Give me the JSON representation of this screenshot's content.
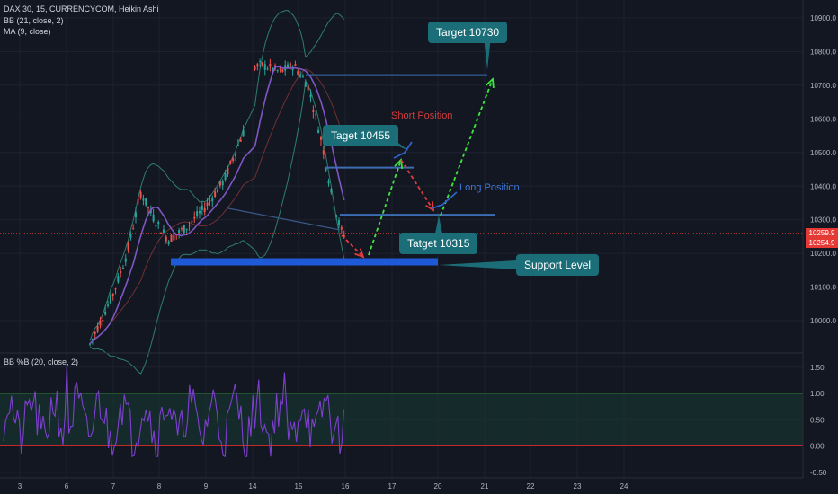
{
  "header": {
    "title": "DAX 30, 15, CURRENCYCOM, Heikin Ashi",
    "bb_label": "BB (21, close, 2)",
    "ma_label": "MA (9, close)"
  },
  "indicator": {
    "label": "BB %B (20, close, 2)"
  },
  "price_badges": {
    "upper": "10259.9",
    "lower": "10254.9"
  },
  "annotations": {
    "target_top": "Target 10730",
    "target_mid": "Taget 10455",
    "target_low": "Tatget 10315",
    "short": "Short Position",
    "long": "Long Position",
    "support": "Support Level"
  },
  "colors": {
    "background": "#131722",
    "up_candle": "#26a69a",
    "down_candle": "#ef5350",
    "bb_band": "#2f7d6e",
    "ma_line": "#7e57c2",
    "horizontal_levels": "#3b6db3",
    "support_bar": "#1e5ad8",
    "arrow_up": "#3ee73e",
    "arrow_down": "#e33c3c",
    "annotation_box": "#1b6e78",
    "percentb_line": "#7e3fd0",
    "percentb_band_top": "#2e7d32",
    "percentb_band_bottom": "#c62828"
  },
  "chart_data": [
    {
      "type": "candlestick",
      "title": "DAX 30, 15, CURRENCYCOM, Heikin Ashi",
      "x_ticks": [
        "3",
        "6",
        "7",
        "8",
        "9",
        "14",
        "15",
        "16",
        "17",
        "20",
        "21",
        "22",
        "23",
        "24"
      ],
      "y_ticks": [
        "10900.0",
        "10800.0",
        "10700.0",
        "10600.0",
        "10500.0",
        "10400.0",
        "10300.0",
        "10200.0",
        "10100.0",
        "10000.0"
      ],
      "ylim": [
        9920,
        10950
      ],
      "series_shape": [
        {
          "day": 6.5,
          "price": 9930
        },
        {
          "day": 7.0,
          "price": 10080
        },
        {
          "day": 7.3,
          "price": 10200
        },
        {
          "day": 7.6,
          "price": 10380
        },
        {
          "day": 7.9,
          "price": 10300
        },
        {
          "day": 8.2,
          "price": 10240
        },
        {
          "day": 8.6,
          "price": 10280
        },
        {
          "day": 9.0,
          "price": 10340
        },
        {
          "day": 9.4,
          "price": 10420
        },
        {
          "day": 9.8,
          "price": 10560
        },
        {
          "day": 14.2,
          "price": 10760
        },
        {
          "day": 14.6,
          "price": 10740
        },
        {
          "day": 14.9,
          "price": 10760
        },
        {
          "day": 15.2,
          "price": 10700
        },
        {
          "day": 15.5,
          "price": 10530
        },
        {
          "day": 15.7,
          "price": 10380
        },
        {
          "day": 15.9,
          "price": 10270
        },
        {
          "day": 16.0,
          "price": 10250
        }
      ],
      "levels": [
        10730,
        10455,
        10315,
        10175
      ],
      "last_prices": [
        10259.9,
        10254.9
      ],
      "legend": [
        "BB (21, close, 2)",
        "MA (9, close)"
      ]
    },
    {
      "type": "line",
      "title": "BB %B (20, close, 2)",
      "y_ticks": [
        "1.50",
        "1.00",
        "0.50",
        "0.00",
        "-0.50"
      ],
      "ylim": [
        -0.6,
        1.6
      ],
      "band": [
        0,
        1
      ]
    }
  ]
}
